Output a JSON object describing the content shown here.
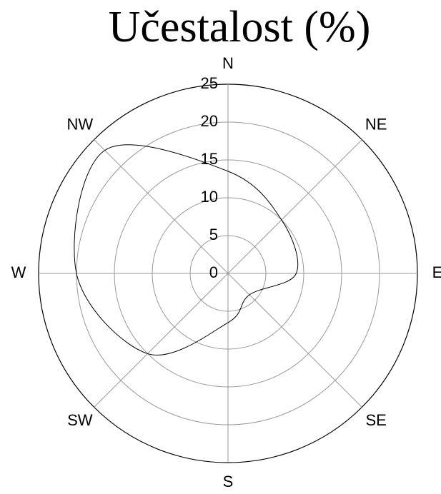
{
  "chart_data": {
    "type": "polar",
    "title": "Učestalost (%)",
    "categories": [
      "N",
      "NE",
      "E",
      "SE",
      "S",
      "SW",
      "W",
      "NW"
    ],
    "values": [
      13.5,
      10,
      9,
      4,
      6.5,
      15,
      20,
      23
    ],
    "color": "#000000",
    "rlim": [
      0,
      25
    ],
    "rticks": [
      0,
      5,
      10,
      15,
      20,
      25
    ],
    "grid": true
  }
}
